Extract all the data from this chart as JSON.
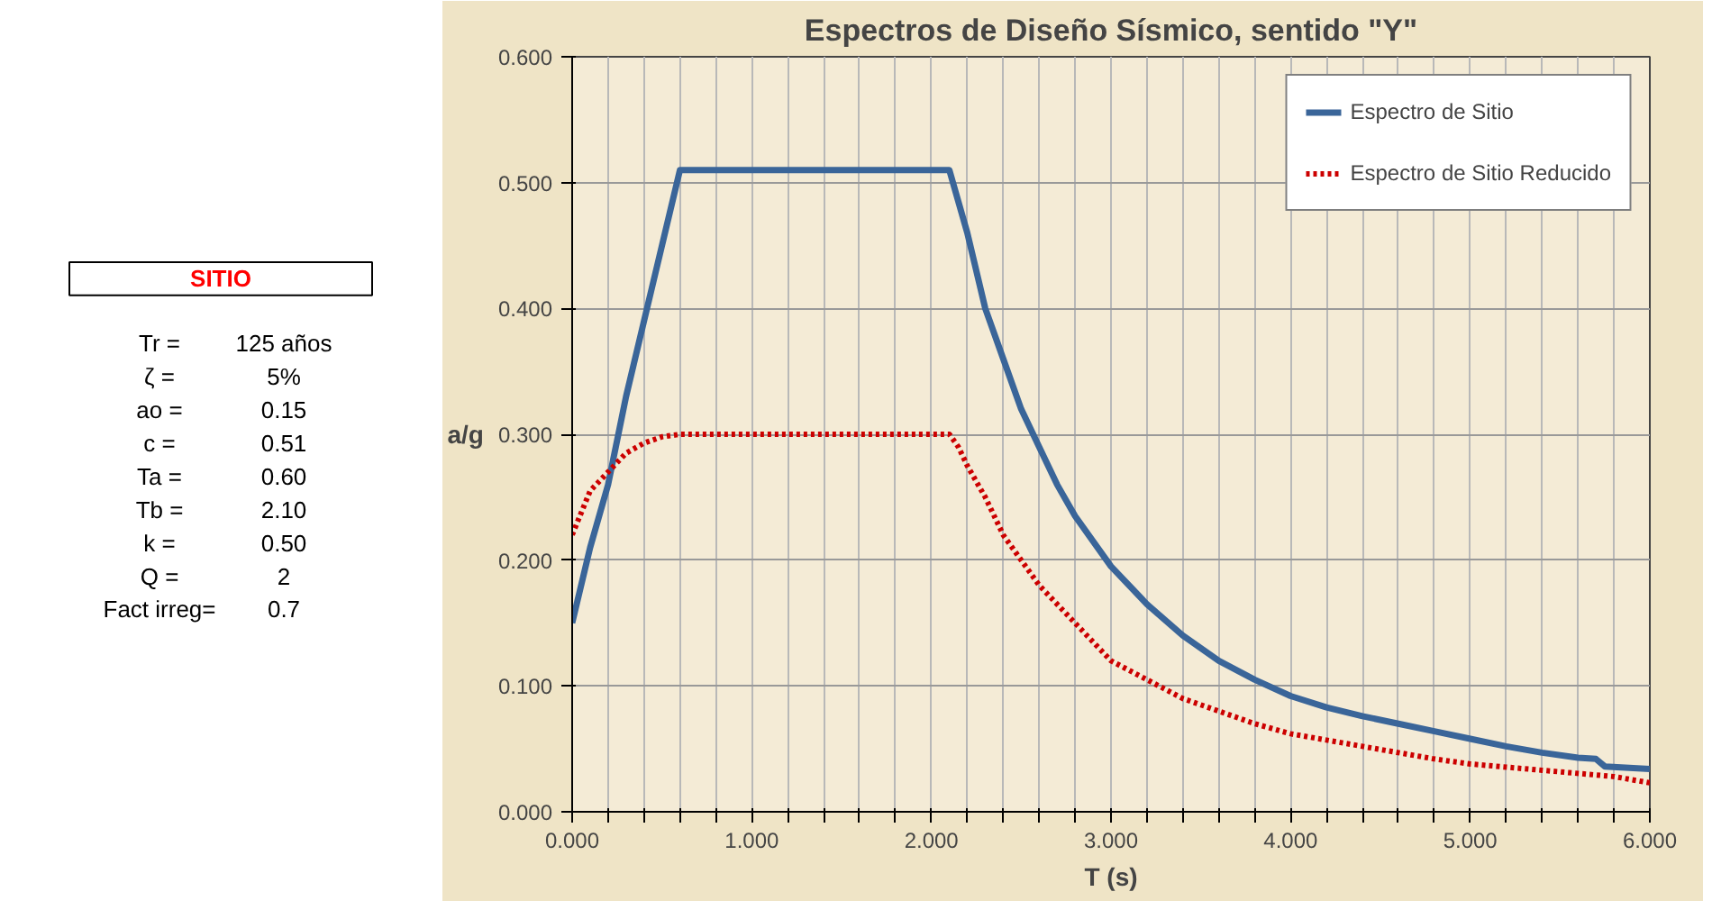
{
  "chart_data": [
    {
      "type": "other",
      "title": "SITIO",
      "annotations": [
        "Tr =",
        "125 años",
        "ζ =",
        "5%",
        "ao =",
        "0.15",
        "c =",
        "0.51",
        "Ta =",
        "0.60",
        "Tb =",
        "2.10",
        "k =",
        "0.50",
        "Q =",
        "2",
        "Fact irreg=",
        "0.7"
      ]
    },
    {
      "type": "line",
      "title": "Espectros de Diseño Sísmico, sentido \"Y\"",
      "xlabel": "T (s)",
      "ylabel": "a/g",
      "xlim": [
        0,
        6
      ],
      "ylim": [
        0,
        0.6
      ],
      "xticks": [
        {
          "value": 0,
          "label": "0.000"
        },
        {
          "value": 0.2,
          "label": null
        },
        {
          "value": 0.4,
          "label": null
        },
        {
          "value": 0.6,
          "label": null
        },
        {
          "value": 0.8,
          "label": null
        },
        {
          "value": 1,
          "label": "1.000"
        },
        {
          "value": 1.2,
          "label": null
        },
        {
          "value": 1.4,
          "label": null
        },
        {
          "value": 1.6,
          "label": null
        },
        {
          "value": 1.8,
          "label": null
        },
        {
          "value": 2,
          "label": "2.000"
        },
        {
          "value": 2.2,
          "label": null
        },
        {
          "value": 2.4,
          "label": null
        },
        {
          "value": 2.6,
          "label": null
        },
        {
          "value": 2.8,
          "label": null
        },
        {
          "value": 3,
          "label": "3.000"
        },
        {
          "value": 3.2,
          "label": null
        },
        {
          "value": 3.4,
          "label": null
        },
        {
          "value": 3.6,
          "label": null
        },
        {
          "value": 3.8,
          "label": null
        },
        {
          "value": 4,
          "label": "4.000"
        },
        {
          "value": 4.2,
          "label": null
        },
        {
          "value": 4.4,
          "label": null
        },
        {
          "value": 4.6,
          "label": null
        },
        {
          "value": 4.8,
          "label": null
        },
        {
          "value": 5,
          "label": "5.000"
        },
        {
          "value": 5.2,
          "label": null
        },
        {
          "value": 5.4,
          "label": null
        },
        {
          "value": 5.6,
          "label": null
        },
        {
          "value": 5.8,
          "label": null
        },
        {
          "value": 6,
          "label": "6.000"
        }
      ],
      "yticks": [
        {
          "value": 0,
          "label": "0.000"
        },
        {
          "value": 0.1,
          "label": "0.100"
        },
        {
          "value": 0.2,
          "label": "0.200"
        },
        {
          "value": 0.3,
          "label": "0.300"
        },
        {
          "value": 0.4,
          "label": "0.400"
        },
        {
          "value": 0.5,
          "label": "0.500"
        },
        {
          "value": 0.6,
          "label": "0.600"
        }
      ],
      "grid": true,
      "legend": "top right",
      "marker": "none",
      "series": [
        {
          "name": "Espectro de Sitio",
          "color": "#3a6599",
          "line_style": "solid",
          "x": [
            0,
            0.1,
            0.2,
            0.3,
            0.4,
            0.5,
            0.6,
            2.1,
            2.2,
            2.3,
            2.4,
            2.5,
            2.6,
            2.7,
            2.8,
            3.0,
            3.2,
            3.4,
            3.6,
            3.8,
            4.0,
            4.2,
            4.4,
            4.6,
            4.8,
            5.0,
            5.2,
            5.4,
            5.6,
            5.7,
            5.75,
            6.0
          ],
          "values": [
            0.15,
            0.21,
            0.26,
            0.33,
            0.39,
            0.45,
            0.51,
            0.51,
            0.46,
            0.4,
            0.36,
            0.32,
            0.29,
            0.26,
            0.235,
            0.195,
            0.165,
            0.14,
            0.12,
            0.105,
            0.092,
            0.083,
            0.076,
            0.07,
            0.064,
            0.058,
            0.052,
            0.047,
            0.043,
            0.042,
            0.036,
            0.034
          ]
        },
        {
          "name": "Espectro de Sitio Reducido",
          "color": "#cc0000",
          "line_style": "dotted",
          "x": [
            0,
            0.1,
            0.2,
            0.3,
            0.4,
            0.5,
            0.6,
            2.1,
            2.15,
            2.2,
            2.3,
            2.4,
            2.5,
            2.6,
            2.8,
            3.0,
            3.2,
            3.4,
            3.6,
            3.8,
            4.0,
            4.4,
            4.8,
            5.0,
            5.4,
            5.8,
            6.0
          ],
          "values": [
            0.22,
            0.255,
            0.27,
            0.285,
            0.293,
            0.298,
            0.3,
            0.3,
            0.29,
            0.275,
            0.25,
            0.22,
            0.2,
            0.18,
            0.15,
            0.12,
            0.105,
            0.09,
            0.08,
            0.07,
            0.062,
            0.052,
            0.042,
            0.038,
            0.033,
            0.028,
            0.023
          ]
        }
      ]
    }
  ]
}
